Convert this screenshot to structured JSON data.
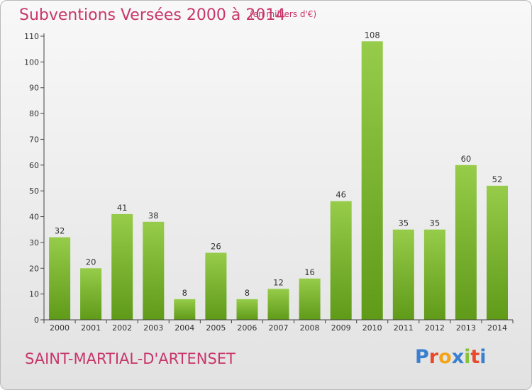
{
  "header": {
    "title": "Subventions Versées 2000 à 2014",
    "unit": "(en milliers d'€)"
  },
  "footer": {
    "commune": "SAINT-MARTIAL-D'ARTENSET",
    "logo": "Proxiti"
  },
  "colors": {
    "accent": "#c8366a",
    "bar_top": "#96cc4a",
    "bar_bottom": "#5f9a18",
    "logo_letters": [
      "#3a7fd0",
      "#e84b2c",
      "#f2a51a",
      "#3a7fd0",
      "#88c23a",
      "#e84b2c",
      "#3a7fd0"
    ]
  },
  "chart_data": {
    "type": "bar",
    "categories": [
      "2000",
      "2001",
      "2002",
      "2003",
      "2004",
      "2005",
      "2006",
      "2007",
      "2008",
      "2009",
      "2010",
      "2011",
      "2012",
      "2013",
      "2014"
    ],
    "values": [
      32,
      20,
      41,
      38,
      8,
      26,
      8,
      12,
      16,
      46,
      108,
      35,
      35,
      60,
      52
    ],
    "ylim": [
      0,
      110
    ],
    "yticks": [
      0,
      10,
      20,
      30,
      40,
      50,
      60,
      70,
      80,
      90,
      100,
      110
    ],
    "title": "Subventions Versées 2000 à 2014",
    "xlabel": "",
    "ylabel": "",
    "grid": false,
    "legend": "none"
  }
}
